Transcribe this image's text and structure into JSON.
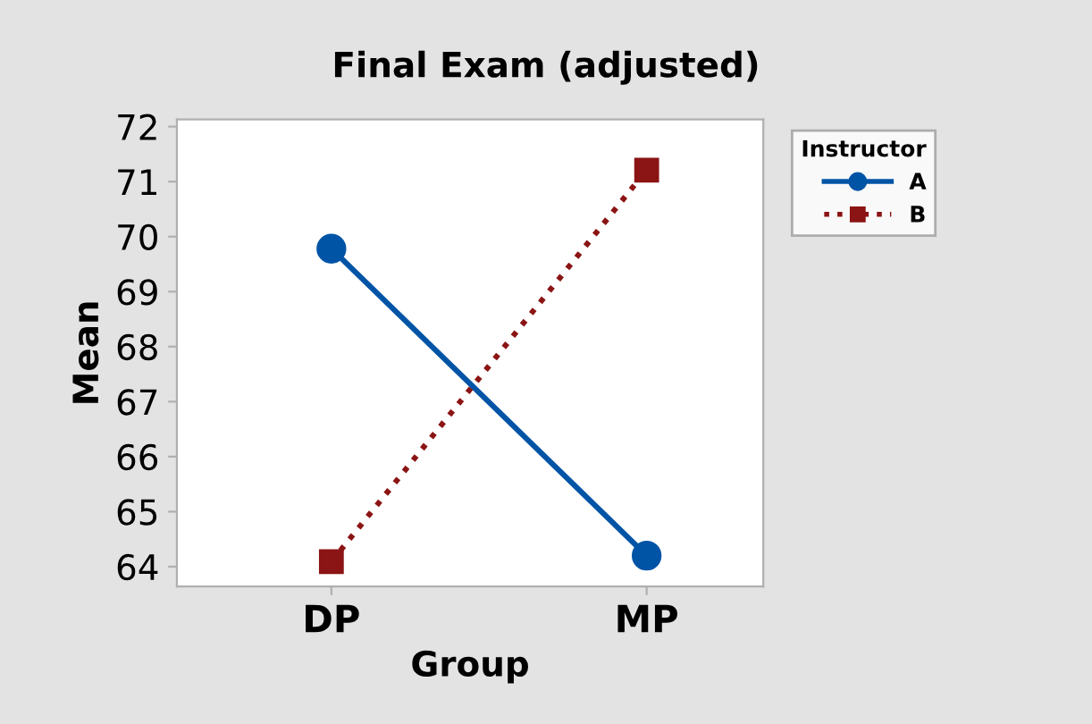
{
  "chart_data": {
    "type": "line",
    "title": "Final Exam (adjusted)",
    "xlabel": "Group",
    "ylabel": "Mean",
    "categories": [
      "DP",
      "MP"
    ],
    "series": [
      {
        "name": "A",
        "color": "#0054a6",
        "values": [
          69.78,
          64.2
        ],
        "marker": "circle",
        "line_style": "solid"
      },
      {
        "name": "B",
        "color": "#8b1414",
        "values": [
          64.09,
          71.21
        ],
        "marker": "square",
        "line_style": "dotted"
      }
    ],
    "ylim": [
      63.64,
      72.13
    ],
    "yticks": [
      64,
      65,
      66,
      67,
      68,
      69,
      70,
      71,
      72
    ],
    "legend_title": "Instructor",
    "legend": "top right",
    "grid": false
  }
}
